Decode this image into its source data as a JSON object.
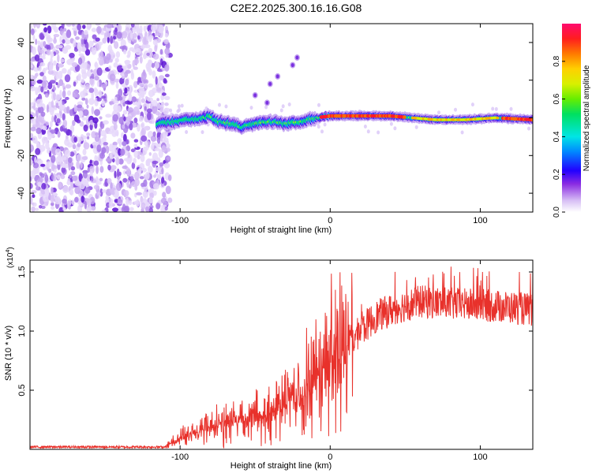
{
  "title": "C2E2.2025.300.16.16.G08",
  "chart_data": [
    {
      "type": "heatmap",
      "xlabel": "Height of straight line (km)",
      "ylabel": "Frequency (Hz)",
      "xlim": [
        -200,
        135
      ],
      "ylim": [
        -50,
        50
      ],
      "xticks": [
        -100,
        0,
        100
      ],
      "yticks": [
        -40,
        -20,
        0,
        20,
        40
      ],
      "colorbar": {
        "label": "Normalized spectral amplitude",
        "range": [
          0,
          1
        ],
        "ticks": [
          "0.0",
          "0.2",
          "0.4",
          "0.6",
          "0.8"
        ]
      },
      "noise_region_end_km": -112,
      "signal_ridge": [
        {
          "x": -115,
          "y": -3
        },
        {
          "x": -105,
          "y": -2
        },
        {
          "x": -95,
          "y": -1
        },
        {
          "x": -85,
          "y": 0
        },
        {
          "x": -80,
          "y": 1
        },
        {
          "x": -75,
          "y": -2
        },
        {
          "x": -65,
          "y": -3
        },
        {
          "x": -60,
          "y": -5
        },
        {
          "x": -50,
          "y": -3
        },
        {
          "x": -40,
          "y": -2
        },
        {
          "x": -30,
          "y": -3
        },
        {
          "x": -20,
          "y": -2
        },
        {
          "x": -10,
          "y": 0
        },
        {
          "x": 0,
          "y": 1
        },
        {
          "x": 20,
          "y": 1
        },
        {
          "x": 40,
          "y": 1
        },
        {
          "x": 55,
          "y": 0
        },
        {
          "x": 70,
          "y": -1
        },
        {
          "x": 90,
          "y": -1
        },
        {
          "x": 110,
          "y": 0
        },
        {
          "x": 135,
          "y": -1
        }
      ],
      "harmonic_blips": [
        {
          "x": -22,
          "y": 32
        },
        {
          "x": -25,
          "y": 28
        },
        {
          "x": -35,
          "y": 22
        },
        {
          "x": -40,
          "y": 18
        },
        {
          "x": -50,
          "y": 12
        },
        {
          "x": -42,
          "y": 8
        }
      ]
    },
    {
      "type": "line",
      "xlabel": "Height of straight line (km)",
      "ylabel": "SNR (10 * v/v)",
      "y_multiplier": "(x10",
      "y_multiplier_exp": "4",
      "xlim": [
        -200,
        135
      ],
      "ylim": [
        0,
        1.6
      ],
      "xticks": [
        -100,
        0,
        100
      ],
      "yticks": [
        "0.5",
        "1.0",
        "1.5"
      ],
      "series": [
        {
          "name": "SNR",
          "color": "#e8312b",
          "envelope": [
            {
              "x": -200,
              "y": 0.02
            },
            {
              "x": -110,
              "y": 0.02
            },
            {
              "x": -100,
              "y": 0.1
            },
            {
              "x": -80,
              "y": 0.18
            },
            {
              "x": -60,
              "y": 0.25
            },
            {
              "x": -40,
              "y": 0.3
            },
            {
              "x": -20,
              "y": 0.45
            },
            {
              "x": -10,
              "y": 0.6
            },
            {
              "x": 0,
              "y": 0.75
            },
            {
              "x": 10,
              "y": 0.85
            },
            {
              "x": 20,
              "y": 1.0
            },
            {
              "x": 30,
              "y": 1.12
            },
            {
              "x": 45,
              "y": 1.2
            },
            {
              "x": 60,
              "y": 1.25
            },
            {
              "x": 80,
              "y": 1.23
            },
            {
              "x": 100,
              "y": 1.22
            },
            {
              "x": 120,
              "y": 1.2
            },
            {
              "x": 135,
              "y": 1.18
            }
          ]
        }
      ]
    }
  ]
}
